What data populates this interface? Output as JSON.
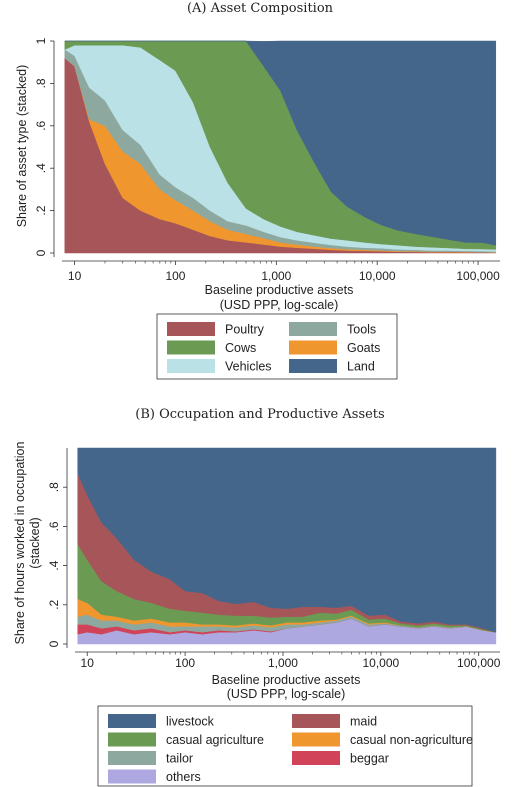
{
  "chart_data": [
    {
      "type": "area",
      "title": "(A) Asset Composition",
      "xlabel": "Baseline productive assets",
      "xlabel2": "(USD PPP, log-scale)",
      "ylabel": "Share of asset type (stacked)",
      "xscale": "log",
      "xlim": [
        7.5,
        165000
      ],
      "ylim": [
        0,
        1
      ],
      "xticks": [
        {
          "v": 10,
          "label": "10"
        },
        {
          "v": 100,
          "label": "100"
        },
        {
          "v": 1000,
          "label": "1,000"
        },
        {
          "v": 10000,
          "label": "10,000"
        },
        {
          "v": 100000,
          "label": "100,000"
        }
      ],
      "yticks": [
        {
          "v": 0,
          "label": "0"
        },
        {
          "v": 0.2,
          "label": ".2"
        },
        {
          "v": 0.4,
          "label": ".4"
        },
        {
          "v": 0.6,
          "label": ".6"
        },
        {
          "v": 0.8,
          "label": ".8"
        },
        {
          "v": 1,
          "label": "1"
        }
      ],
      "legend_position": "bottom",
      "legend_columns": 2,
      "x": [
        8,
        10,
        14,
        20,
        30,
        45,
        70,
        100,
        150,
        220,
        330,
        500,
        750,
        1100,
        1600,
        2400,
        3500,
        5000,
        7500,
        11000,
        16000,
        24000,
        35000,
        50000,
        75000,
        110000,
        150000
      ],
      "series": [
        {
          "name": "Poultry",
          "color": "#a65559",
          "values": [
            0.92,
            0.88,
            0.62,
            0.42,
            0.26,
            0.2,
            0.16,
            0.14,
            0.11,
            0.08,
            0.06,
            0.05,
            0.04,
            0.03,
            0.025,
            0.02,
            0.015,
            0.012,
            0.01,
            0.008,
            0.006,
            0.005,
            0.004,
            0.004,
            0.003,
            0.003,
            0.002
          ]
        },
        {
          "name": "Goats",
          "color": "#f0962f",
          "values": [
            0.0,
            0.0,
            0.01,
            0.18,
            0.22,
            0.22,
            0.14,
            0.11,
            0.09,
            0.07,
            0.05,
            0.04,
            0.03,
            0.02,
            0.015,
            0.01,
            0.008,
            0.006,
            0.005,
            0.004,
            0.003,
            0.003,
            0.002,
            0.002,
            0.002,
            0.001,
            0.001
          ]
        },
        {
          "name": "Tools",
          "color": "#8da89e",
          "values": [
            0.04,
            0.05,
            0.15,
            0.12,
            0.1,
            0.09,
            0.07,
            0.06,
            0.06,
            0.05,
            0.04,
            0.04,
            0.03,
            0.025,
            0.02,
            0.018,
            0.015,
            0.012,
            0.01,
            0.01,
            0.008,
            0.007,
            0.006,
            0.006,
            0.005,
            0.005,
            0.004
          ]
        },
        {
          "name": "Vehicles",
          "color": "#b9e1e6",
          "values": [
            0.0,
            0.05,
            0.2,
            0.26,
            0.4,
            0.46,
            0.54,
            0.55,
            0.45,
            0.3,
            0.18,
            0.08,
            0.06,
            0.05,
            0.04,
            0.035,
            0.03,
            0.03,
            0.025,
            0.02,
            0.02,
            0.015,
            0.015,
            0.012,
            0.01,
            0.01,
            0.01
          ]
        },
        {
          "name": "Cows",
          "color": "#6b9a52",
          "values": [
            0.04,
            0.02,
            0.02,
            0.02,
            0.02,
            0.03,
            0.09,
            0.14,
            0.29,
            0.5,
            0.67,
            0.79,
            0.72,
            0.64,
            0.48,
            0.34,
            0.22,
            0.16,
            0.12,
            0.09,
            0.07,
            0.06,
            0.05,
            0.04,
            0.03,
            0.03,
            0.02
          ]
        },
        {
          "name": "Land",
          "color": "#44668a",
          "values": [
            0.0,
            0.0,
            0.0,
            0.0,
            0.0,
            0.0,
            0.0,
            0.0,
            0.0,
            0.0,
            0.0,
            0.0,
            0.118,
            0.235,
            0.42,
            0.577,
            0.712,
            0.78,
            0.83,
            0.868,
            0.893,
            0.91,
            0.923,
            0.936,
            0.95,
            0.951,
            0.963
          ]
        }
      ]
    },
    {
      "type": "area",
      "title": "(B) Occupation and Productive Assets",
      "xlabel": "Baseline productive assets",
      "xlabel2": "(USD PPP, log-scale)",
      "ylabel": "Share of hours worked in occupation",
      "ylabel2": "(stacked)",
      "xscale": "log",
      "xlim": [
        7.5,
        165000
      ],
      "ylim": [
        0,
        1
      ],
      "xticks": [
        {
          "v": 10,
          "label": "10"
        },
        {
          "v": 100,
          "label": "100"
        },
        {
          "v": 1000,
          "label": "1,000"
        },
        {
          "v": 10000,
          "label": "10,000"
        },
        {
          "v": 100000,
          "label": "100,000"
        }
      ],
      "yticks": [
        {
          "v": 0,
          "label": "0"
        },
        {
          "v": 0.2,
          "label": ".2"
        },
        {
          "v": 0.4,
          "label": ".4"
        },
        {
          "v": 0.6,
          "label": ".6"
        },
        {
          "v": 0.8,
          "label": ".8"
        }
      ],
      "legend_position": "bottom",
      "legend_columns": 2,
      "x": [
        8,
        10,
        14,
        20,
        30,
        45,
        70,
        100,
        150,
        220,
        330,
        500,
        750,
        1100,
        1600,
        2400,
        3500,
        5000,
        7500,
        11000,
        16000,
        24000,
        35000,
        50000,
        75000,
        110000,
        150000
      ],
      "series": [
        {
          "name": "others",
          "color": "#ada8e0",
          "values": [
            0.05,
            0.06,
            0.05,
            0.07,
            0.05,
            0.06,
            0.05,
            0.06,
            0.05,
            0.06,
            0.06,
            0.07,
            0.06,
            0.08,
            0.09,
            0.1,
            0.11,
            0.13,
            0.09,
            0.1,
            0.09,
            0.08,
            0.09,
            0.08,
            0.09,
            0.07,
            0.06
          ]
        },
        {
          "name": "beggar",
          "color": "#d04358",
          "values": [
            0.05,
            0.04,
            0.03,
            0.02,
            0.02,
            0.02,
            0.01,
            0.01,
            0.01,
            0.01,
            0.005,
            0.005,
            0.005,
            0.0,
            0.0,
            0.0,
            0.0,
            0.0,
            0.0,
            0.0,
            0.0,
            0.0,
            0.0,
            0.0,
            0.0,
            0.0,
            0.0
          ]
        },
        {
          "name": "tailor",
          "color": "#8da89e",
          "values": [
            0.04,
            0.05,
            0.04,
            0.03,
            0.03,
            0.03,
            0.03,
            0.02,
            0.03,
            0.02,
            0.02,
            0.02,
            0.02,
            0.02,
            0.01,
            0.01,
            0.01,
            0.01,
            0.01,
            0.005,
            0.005,
            0.005,
            0.005,
            0.005,
            0.0,
            0.0,
            0.0
          ]
        },
        {
          "name": "casual non-agriculture",
          "color": "#f0962f",
          "values": [
            0.09,
            0.06,
            0.03,
            0.02,
            0.02,
            0.02,
            0.02,
            0.02,
            0.01,
            0.01,
            0.01,
            0.01,
            0.01,
            0.01,
            0.01,
            0.01,
            0.005,
            0.005,
            0.005,
            0.005,
            0.0,
            0.0,
            0.0,
            0.0,
            0.0,
            0.0,
            0.0
          ]
        },
        {
          "name": "casual agriculture",
          "color": "#6b9a52",
          "values": [
            0.28,
            0.22,
            0.17,
            0.13,
            0.11,
            0.08,
            0.07,
            0.06,
            0.06,
            0.05,
            0.05,
            0.04,
            0.04,
            0.03,
            0.03,
            0.04,
            0.03,
            0.03,
            0.02,
            0.02,
            0.01,
            0.01,
            0.01,
            0.01,
            0.005,
            0.005,
            0.0
          ]
        },
        {
          "name": "maid",
          "color": "#a65559",
          "values": [
            0.36,
            0.33,
            0.3,
            0.27,
            0.2,
            0.16,
            0.15,
            0.1,
            0.1,
            0.07,
            0.06,
            0.07,
            0.05,
            0.04,
            0.05,
            0.03,
            0.03,
            0.02,
            0.02,
            0.02,
            0.01,
            0.01,
            0.01,
            0.005,
            0.005,
            0.005,
            0.0
          ]
        },
        {
          "name": "livestock",
          "color": "#44668a",
          "values": [
            0.13,
            0.24,
            0.38,
            0.46,
            0.57,
            0.63,
            0.67,
            0.73,
            0.74,
            0.785,
            0.795,
            0.785,
            0.815,
            0.82,
            0.81,
            0.81,
            0.815,
            0.805,
            0.855,
            0.855,
            0.885,
            0.895,
            0.885,
            0.9,
            0.9,
            0.92,
            0.94
          ]
        }
      ],
      "legend_order": [
        "livestock",
        "maid",
        "casual agriculture",
        "casual non-agriculture",
        "tailor",
        "beggar",
        "others"
      ]
    }
  ]
}
